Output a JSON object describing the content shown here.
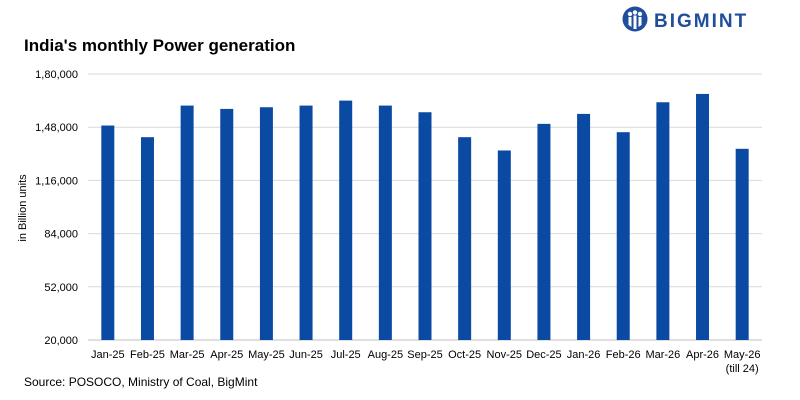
{
  "brand": {
    "name": "BIGMINT",
    "logo_icon": "bigmint-people-icon",
    "color": "#1f4e9c"
  },
  "footer": {
    "source": "Source: POSOCO, Ministry of Coal, BigMint"
  },
  "chart_data": {
    "type": "bar",
    "title": "India's monthly Power generation",
    "ylabel": "in Billion units",
    "xlabel": "",
    "categories": [
      "Jan-25",
      "Feb-25",
      "Mar-25",
      "Apr-25",
      "May-25",
      "Jun-25",
      "Jul-25",
      "Aug-25",
      "Sep-25",
      "Oct-25",
      "Nov-25",
      "Dec-25",
      "Jan-26",
      "Feb-26",
      "Mar-26",
      "Apr-26",
      "May-26"
    ],
    "category_notes": {
      "May-26": "(till 24)"
    },
    "series": [
      {
        "values": [
          149000,
          142000,
          161000,
          159000,
          160000,
          161000,
          164000,
          161000,
          157000,
          142000,
          134000,
          150000,
          156000,
          145000,
          163000,
          168000,
          135000
        ]
      }
    ],
    "ylim": [
      20000,
      180000
    ],
    "yticks": [
      20000,
      52000,
      84000,
      116000,
      148000,
      180000
    ],
    "ytick_labels": [
      "20,000",
      "52,000",
      "84,000",
      "1,16,000",
      "1,48,000",
      "1,80,000"
    ],
    "grid": true,
    "legend": "none",
    "bar_color": "#0b4aa2",
    "grid_color": "#d9d9d9"
  }
}
